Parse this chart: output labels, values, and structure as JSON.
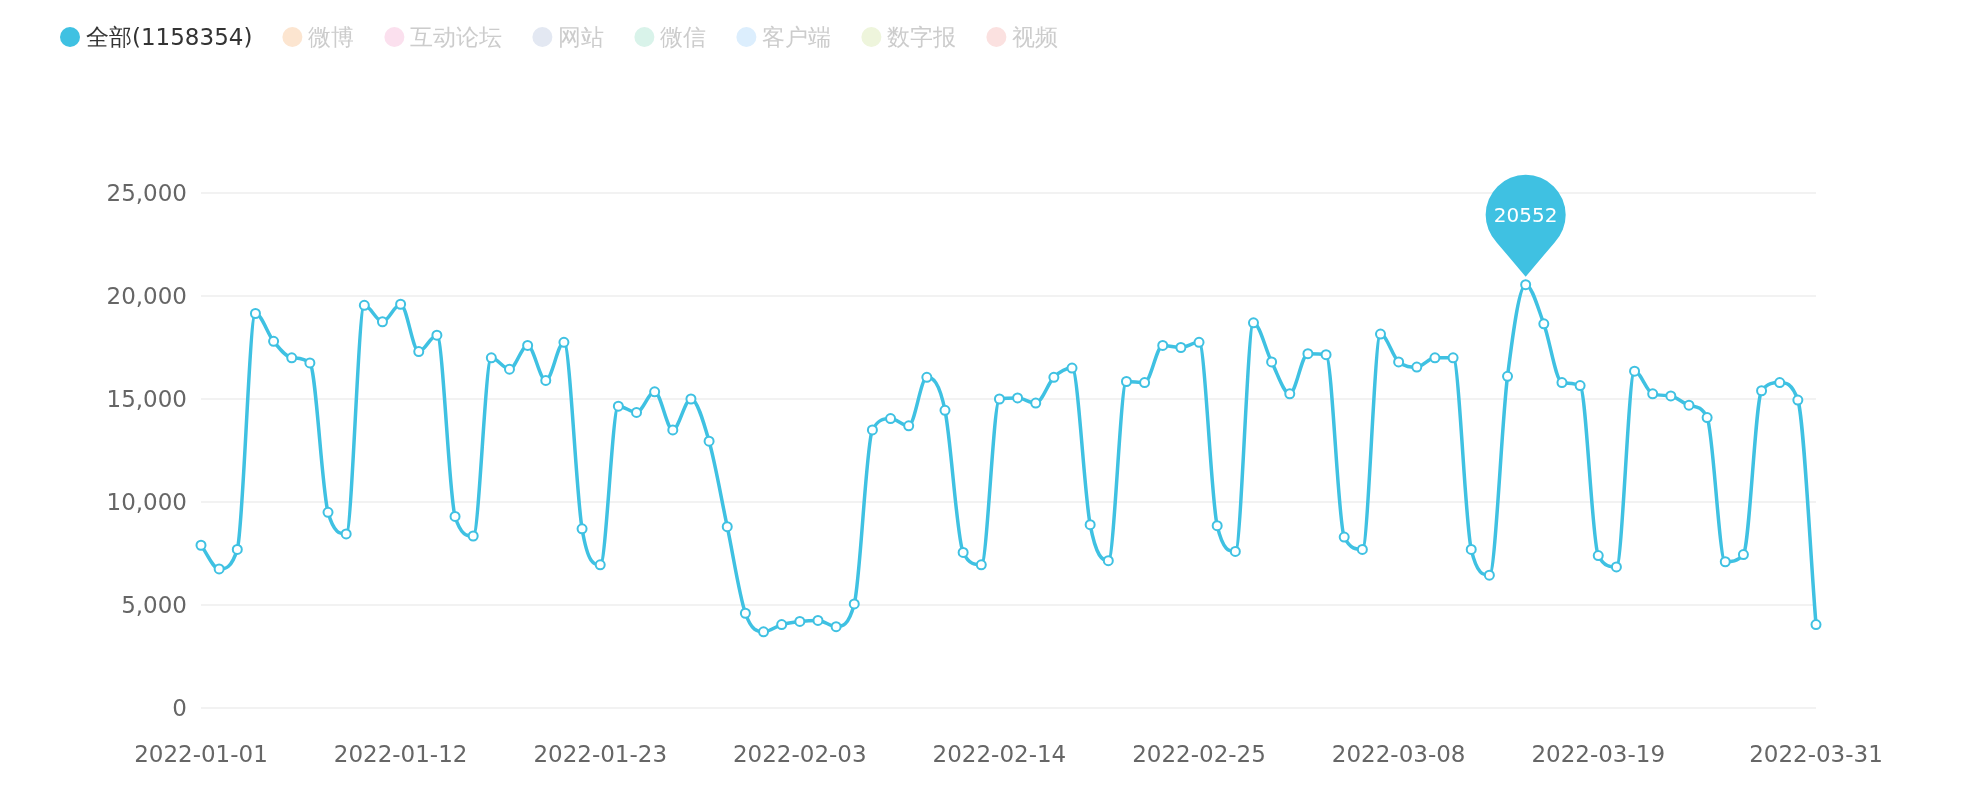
{
  "chart_data": {
    "type": "line",
    "x": [
      "2022-01-01",
      "2022-01-02",
      "2022-01-03",
      "2022-01-04",
      "2022-01-05",
      "2022-01-06",
      "2022-01-07",
      "2022-01-08",
      "2022-01-09",
      "2022-01-10",
      "2022-01-11",
      "2022-01-12",
      "2022-01-13",
      "2022-01-14",
      "2022-01-15",
      "2022-01-16",
      "2022-01-17",
      "2022-01-18",
      "2022-01-19",
      "2022-01-20",
      "2022-01-21",
      "2022-01-22",
      "2022-01-23",
      "2022-01-24",
      "2022-01-25",
      "2022-01-26",
      "2022-01-27",
      "2022-01-28",
      "2022-01-29",
      "2022-01-30",
      "2022-01-31",
      "2022-02-01",
      "2022-02-02",
      "2022-02-03",
      "2022-02-04",
      "2022-02-05",
      "2022-02-06",
      "2022-02-07",
      "2022-02-08",
      "2022-02-09",
      "2022-02-10",
      "2022-02-11",
      "2022-02-12",
      "2022-02-13",
      "2022-02-14",
      "2022-02-15",
      "2022-02-16",
      "2022-02-17",
      "2022-02-18",
      "2022-02-19",
      "2022-02-20",
      "2022-02-21",
      "2022-02-22",
      "2022-02-23",
      "2022-02-24",
      "2022-02-25",
      "2022-02-26",
      "2022-02-27",
      "2022-02-28",
      "2022-03-01",
      "2022-03-02",
      "2022-03-03",
      "2022-03-04",
      "2022-03-05",
      "2022-03-06",
      "2022-03-07",
      "2022-03-08",
      "2022-03-09",
      "2022-03-10",
      "2022-03-11",
      "2022-03-12",
      "2022-03-13",
      "2022-03-14",
      "2022-03-15",
      "2022-03-16",
      "2022-03-17",
      "2022-03-18",
      "2022-03-19",
      "2022-03-20",
      "2022-03-21",
      "2022-03-22",
      "2022-03-23",
      "2022-03-24",
      "2022-03-25",
      "2022-03-26",
      "2022-03-27",
      "2022-03-28",
      "2022-03-29",
      "2022-03-30",
      "2022-03-31"
    ],
    "series": [
      {
        "name": "全部(1158354)",
        "color": "#3fc1e2",
        "values": [
          7900,
          6750,
          7700,
          19150,
          17800,
          17000,
          16750,
          9500,
          8450,
          19550,
          18750,
          19600,
          17300,
          18100,
          9300,
          8350,
          17000,
          16450,
          17600,
          15900,
          17750,
          8700,
          6950,
          14650,
          14350,
          15350,
          13500,
          15000,
          12950,
          8800,
          4600,
          3700,
          4050,
          4200,
          4250,
          3950,
          5050,
          13500,
          14050,
          13700,
          16050,
          14450,
          7550,
          6950,
          15000,
          15050,
          14800,
          16050,
          16500,
          8900,
          7150,
          15850,
          15800,
          17600,
          17500,
          17750,
          8850,
          7600,
          18700,
          16800,
          15250,
          17200,
          17150,
          8300,
          7700,
          18150,
          16800,
          16550,
          17000,
          17000,
          7700,
          6450,
          16100,
          20552,
          18650,
          15800,
          15650,
          7400,
          6850,
          16350,
          15250,
          15150,
          14700,
          14100,
          7100,
          7450,
          15400,
          15800,
          14950,
          4050
        ]
      },
      {
        "name": "微博",
        "color": "#fce5d0",
        "values": [
          null,
          null,
          null,
          null,
          null,
          null,
          null,
          null,
          null,
          null,
          null,
          null,
          null,
          null,
          null,
          null,
          null,
          null,
          null,
          null,
          null,
          null,
          null,
          null,
          null,
          null,
          null,
          null,
          null,
          null,
          null,
          null,
          null,
          null,
          null,
          null,
          null,
          null,
          null,
          null,
          null,
          null,
          null,
          null,
          null,
          null,
          null,
          null,
          null,
          null,
          null,
          null,
          null,
          null,
          null,
          null,
          null,
          null,
          null,
          null,
          null,
          null,
          null,
          null,
          null,
          null,
          null,
          null,
          null,
          null,
          null,
          null,
          null,
          null,
          null,
          null,
          null,
          null,
          null,
          null,
          null,
          null,
          null,
          null,
          null,
          null,
          null,
          null,
          null,
          null
        ]
      },
      {
        "name": "互动论坛",
        "color": "#fbe0ee",
        "values": [
          null,
          null,
          null,
          null,
          null,
          null,
          null,
          null,
          null,
          null,
          null,
          null,
          null,
          null,
          null,
          null,
          null,
          null,
          null,
          null,
          null,
          null,
          null,
          null,
          null,
          null,
          null,
          null,
          null,
          null,
          null,
          null,
          null,
          null,
          null,
          null,
          null,
          null,
          null,
          null,
          null,
          null,
          null,
          null,
          null,
          null,
          null,
          null,
          null,
          null,
          null,
          null,
          null,
          null,
          null,
          null,
          null,
          null,
          null,
          null,
          null,
          null,
          null,
          null,
          null,
          null,
          null,
          null,
          null,
          null,
          null,
          null,
          null,
          null,
          null,
          null,
          null,
          null,
          null,
          null,
          null,
          null,
          null,
          null,
          null,
          null,
          null,
          null,
          null,
          null
        ]
      },
      {
        "name": "网站",
        "color": "#e3e8f2",
        "values": [
          null,
          null,
          null,
          null,
          null,
          null,
          null,
          null,
          null,
          null,
          null,
          null,
          null,
          null,
          null,
          null,
          null,
          null,
          null,
          null,
          null,
          null,
          null,
          null,
          null,
          null,
          null,
          null,
          null,
          null,
          null,
          null,
          null,
          null,
          null,
          null,
          null,
          null,
          null,
          null,
          null,
          null,
          null,
          null,
          null,
          null,
          null,
          null,
          null,
          null,
          null,
          null,
          null,
          null,
          null,
          null,
          null,
          null,
          null,
          null,
          null,
          null,
          null,
          null,
          null,
          null,
          null,
          null,
          null,
          null,
          null,
          null,
          null,
          null,
          null,
          null,
          null,
          null,
          null,
          null,
          null,
          null,
          null,
          null,
          null,
          null,
          null,
          null,
          null,
          null
        ]
      },
      {
        "name": "微信",
        "color": "#d9f3ea",
        "values": [
          null,
          null,
          null,
          null,
          null,
          null,
          null,
          null,
          null,
          null,
          null,
          null,
          null,
          null,
          null,
          null,
          null,
          null,
          null,
          null,
          null,
          null,
          null,
          null,
          null,
          null,
          null,
          null,
          null,
          null,
          null,
          null,
          null,
          null,
          null,
          null,
          null,
          null,
          null,
          null,
          null,
          null,
          null,
          null,
          null,
          null,
          null,
          null,
          null,
          null,
          null,
          null,
          null,
          null,
          null,
          null,
          null,
          null,
          null,
          null,
          null,
          null,
          null,
          null,
          null,
          null,
          null,
          null,
          null,
          null,
          null,
          null,
          null,
          null,
          null,
          null,
          null,
          null,
          null,
          null,
          null,
          null,
          null,
          null,
          null,
          null,
          null,
          null,
          null,
          null
        ]
      },
      {
        "name": "客户端",
        "color": "#dceefd",
        "values": [
          null,
          null,
          null,
          null,
          null,
          null,
          null,
          null,
          null,
          null,
          null,
          null,
          null,
          null,
          null,
          null,
          null,
          null,
          null,
          null,
          null,
          null,
          null,
          null,
          null,
          null,
          null,
          null,
          null,
          null,
          null,
          null,
          null,
          null,
          null,
          null,
          null,
          null,
          null,
          null,
          null,
          null,
          null,
          null,
          null,
          null,
          null,
          null,
          null,
          null,
          null,
          null,
          null,
          null,
          null,
          null,
          null,
          null,
          null,
          null,
          null,
          null,
          null,
          null,
          null,
          null,
          null,
          null,
          null,
          null,
          null,
          null,
          null,
          null,
          null,
          null,
          null,
          null,
          null,
          null,
          null,
          null,
          null,
          null,
          null,
          null,
          null,
          null,
          null,
          null
        ]
      },
      {
        "name": "数字报",
        "color": "#eef5dc",
        "values": [
          null,
          null,
          null,
          null,
          null,
          null,
          null,
          null,
          null,
          null,
          null,
          null,
          null,
          null,
          null,
          null,
          null,
          null,
          null,
          null,
          null,
          null,
          null,
          null,
          null,
          null,
          null,
          null,
          null,
          null,
          null,
          null,
          null,
          null,
          null,
          null,
          null,
          null,
          null,
          null,
          null,
          null,
          null,
          null,
          null,
          null,
          null,
          null,
          null,
          null,
          null,
          null,
          null,
          null,
          null,
          null,
          null,
          null,
          null,
          null,
          null,
          null,
          null,
          null,
          null,
          null,
          null,
          null,
          null,
          null,
          null,
          null,
          null,
          null,
          null,
          null,
          null,
          null,
          null,
          null,
          null,
          null,
          null,
          null,
          null,
          null,
          null,
          null,
          null,
          null
        ]
      },
      {
        "name": "视频",
        "color": "#fbe1e0",
        "values": [
          null,
          null,
          null,
          null,
          null,
          null,
          null,
          null,
          null,
          null,
          null,
          null,
          null,
          null,
          null,
          null,
          null,
          null,
          null,
          null,
          null,
          null,
          null,
          null,
          null,
          null,
          null,
          null,
          null,
          null,
          null,
          null,
          null,
          null,
          null,
          null,
          null,
          null,
          null,
          null,
          null,
          null,
          null,
          null,
          null,
          null,
          null,
          null,
          null,
          null,
          null,
          null,
          null,
          null,
          null,
          null,
          null,
          null,
          null,
          null,
          null,
          null,
          null,
          null,
          null,
          null,
          null,
          null,
          null,
          null,
          null,
          null,
          null,
          null,
          null,
          null,
          null,
          null,
          null,
          null,
          null,
          null,
          null,
          null,
          null,
          null,
          null,
          null,
          null,
          null
        ]
      }
    ],
    "xlim": [
      "2022-01-01",
      "2022-03-31"
    ],
    "xticks": [
      "2022-01-01",
      "2022-01-12",
      "2022-01-23",
      "2022-02-03",
      "2022-02-14",
      "2022-02-25",
      "2022-03-08",
      "2022-03-19",
      "2022-03-31"
    ],
    "ylim": [
      0,
      25000
    ],
    "yticks": [
      {
        "value": 0,
        "label": "0"
      },
      {
        "value": 5000,
        "label": "5,000"
      },
      {
        "value": 10000,
        "label": "10,000"
      },
      {
        "value": 15000,
        "label": "15,000"
      },
      {
        "value": 20000,
        "label": "20,000"
      },
      {
        "value": 25000,
        "label": "25,000"
      }
    ],
    "annotations": [
      {
        "text": "20552",
        "x": "2022-03-15",
        "y": 20552
      }
    ],
    "grid": "y",
    "legend": "top left",
    "marker": "circle",
    "line_style": "solid"
  }
}
